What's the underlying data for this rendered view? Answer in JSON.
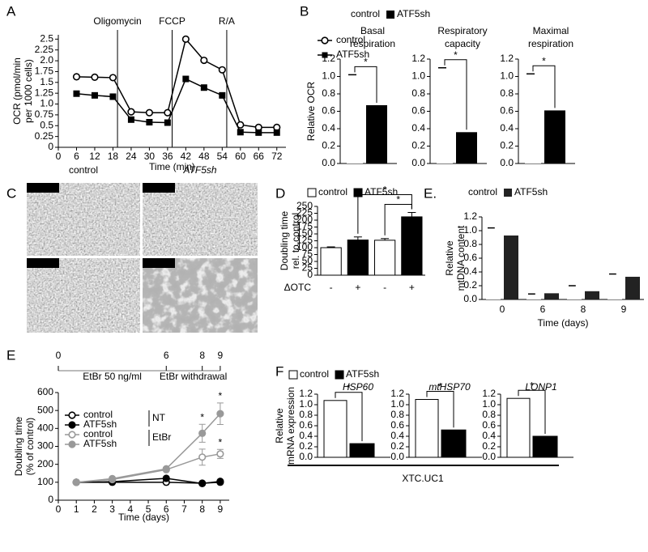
{
  "chart_data": [
    {
      "type": "line",
      "panel": "A",
      "xlabel": "Time (min)",
      "ylabel": [
        "OCR (pmol/min",
        "per 1000 cells)"
      ],
      "xlim": [
        0,
        75
      ],
      "xticks": [
        0,
        6,
        12,
        18,
        24,
        30,
        36,
        42,
        48,
        54,
        60,
        66,
        72
      ],
      "ylim": [
        0,
        2.6
      ],
      "yticks": [
        0,
        0.25,
        0.5,
        0.75,
        {
          "value": 1,
          "label": "1.0"
        },
        1.25,
        1.5,
        1.75,
        {
          "value": 2,
          "label": "2.0"
        },
        2.25,
        2.5
      ],
      "injections": [
        {
          "x": 19.5,
          "label": "Oligomycin"
        },
        {
          "x": 37.5,
          "label": "FCCP"
        },
        {
          "x": 55.5,
          "label": "R/A"
        }
      ],
      "x": [
        6,
        12,
        18,
        24,
        30,
        36,
        42,
        48,
        54,
        60,
        66,
        72
      ],
      "series": [
        {
          "name": "control",
          "color": "#000000",
          "marker": "open circle",
          "values": [
            1.63,
            1.62,
            1.61,
            0.82,
            0.8,
            0.8,
            2.5,
            2.01,
            1.79,
            0.52,
            0.46,
            0.46
          ]
        },
        {
          "name": "ATF5sh",
          "color": "#000000",
          "marker": "filled square",
          "values": [
            1.24,
            1.2,
            1.17,
            0.64,
            0.58,
            0.57,
            1.58,
            1.38,
            1.2,
            0.35,
            0.34,
            0.34
          ]
        }
      ]
    },
    {
      "type": "bar",
      "panel": "B",
      "ylabel": "Relative OCR",
      "ylim": [
        0,
        1.2
      ],
      "yticks": [
        {
          "value": 0,
          "label": "0.0"
        },
        0.2,
        0.4,
        0.6,
        0.8,
        {
          "value": 1,
          "label": "1.0"
        },
        1.2
      ],
      "categories": [
        [
          "Basal",
          "respiration"
        ],
        [
          "Respiratory",
          "capacity"
        ],
        [
          "Maximal",
          "respiration"
        ]
      ],
      "series": [
        {
          "name": "control",
          "color": "#ffffff",
          "values": [
            1.02,
            1.1,
            1.03
          ]
        },
        {
          "name": "ATF5sh",
          "color": "#000000",
          "values": [
            0.67,
            0.36,
            0.61
          ]
        }
      ],
      "significance": [
        "*",
        "*",
        "*"
      ]
    },
    {
      "type": "bar",
      "panel": "D",
      "ylabel": [
        "Doubling time",
        "rel. to control"
      ],
      "xlabel": "ΔOTC",
      "ylim": [
        0,
        250
      ],
      "yticks": [
        0,
        25,
        50,
        75,
        100,
        125,
        150,
        175,
        200,
        225,
        250
      ],
      "categories": [
        "-",
        "+",
        "-",
        "+"
      ],
      "values": [
        100,
        128,
        127,
        212
      ],
      "errors": [
        3,
        11,
        6,
        16
      ],
      "colors": [
        "#ffffff",
        "#000000",
        "#ffffff",
        "#000000"
      ],
      "legend": [
        {
          "name": "control",
          "color": "#ffffff"
        },
        {
          "name": "ATF5sh",
          "color": "#000000"
        }
      ],
      "significance": [
        "*",
        "*"
      ]
    },
    {
      "type": "bar",
      "panel": "E.",
      "ylabel": [
        "Relative",
        "mtDNA content"
      ],
      "xlabel": "Time (days)",
      "ylim": [
        0,
        1.2
      ],
      "yticks": [
        {
          "value": 0,
          "label": "0.0"
        },
        0.2,
        0.4,
        0.6,
        0.8,
        {
          "value": 1,
          "label": "1.0"
        },
        1.2
      ],
      "categories": [
        "0",
        "6",
        "8",
        "9"
      ],
      "series": [
        {
          "name": "control",
          "color": "#ffffff",
          "values": [
            1.04,
            0.08,
            0.2,
            0.37
          ]
        },
        {
          "name": "ATF5sh",
          "color": "#222222",
          "values": [
            0.93,
            0.09,
            0.12,
            0.33
          ]
        }
      ]
    },
    {
      "type": "line",
      "panel": "E",
      "xlabel": "Time (days)",
      "ylabel": [
        "Doubling time",
        "(% of control)"
      ],
      "xlim": [
        0,
        9.5
      ],
      "xticks": [
        0,
        1,
        2,
        3,
        4,
        5,
        6,
        7,
        8,
        9
      ],
      "ylim": [
        0,
        600
      ],
      "yticks": [
        0,
        100,
        200,
        300,
        400,
        500,
        600
      ],
      "x": [
        1,
        3,
        6,
        8,
        9
      ],
      "series": [
        {
          "name": "control",
          "color": "#000000",
          "marker": "open circle",
          "values": [
            100,
            100,
            100,
            95,
            100
          ]
        },
        {
          "name": "ATF5sh",
          "color": "#000000",
          "marker": "filled circle",
          "values": [
            100,
            103,
            122,
            93,
            105
          ]
        },
        {
          "name": "control",
          "color": "#999999",
          "marker": "open circle",
          "values": [
            100,
            115,
            170,
            240,
            258
          ],
          "errors": [
            0,
            0,
            0,
            45,
            25
          ]
        },
        {
          "name": "ATF5sh",
          "color": "#999999",
          "marker": "filled circle",
          "values": [
            100,
            120,
            175,
            373,
            482
          ],
          "errors": [
            0,
            0,
            0,
            50,
            60
          ]
        }
      ],
      "groups": [
        "NT",
        "EtBr"
      ],
      "timeline": {
        "ticks": [
          0,
          6,
          8,
          9
        ],
        "labels": [
          "EtBr 50 ng/ml",
          "EtBr withdrawal"
        ]
      },
      "significance": [
        "*",
        "*",
        "*"
      ]
    },
    {
      "type": "bar",
      "panel": "F",
      "ylabel": [
        "Relative",
        "mRNA expression"
      ],
      "ylim": [
        0,
        1.2
      ],
      "yticks": [
        {
          "value": 0,
          "label": "0.0"
        },
        0.2,
        0.4,
        0.6,
        0.8,
        {
          "value": 1,
          "label": "1.0"
        },
        1.2
      ],
      "categories": [
        "HSP60",
        "mtHSP70",
        "LONP1"
      ],
      "series": [
        {
          "name": "control",
          "color": "#ffffff",
          "values": [
            1.08,
            1.1,
            1.12
          ]
        },
        {
          "name": "ATF5sh",
          "color": "#000000",
          "values": [
            0.26,
            0.52,
            0.4
          ]
        }
      ],
      "significance": [
        "*",
        "*",
        "*"
      ],
      "cell_line": "XTC.UC1"
    }
  ],
  "micrographs": {
    "panel": "C",
    "columns": [
      "control",
      "ATF5sh"
    ]
  }
}
